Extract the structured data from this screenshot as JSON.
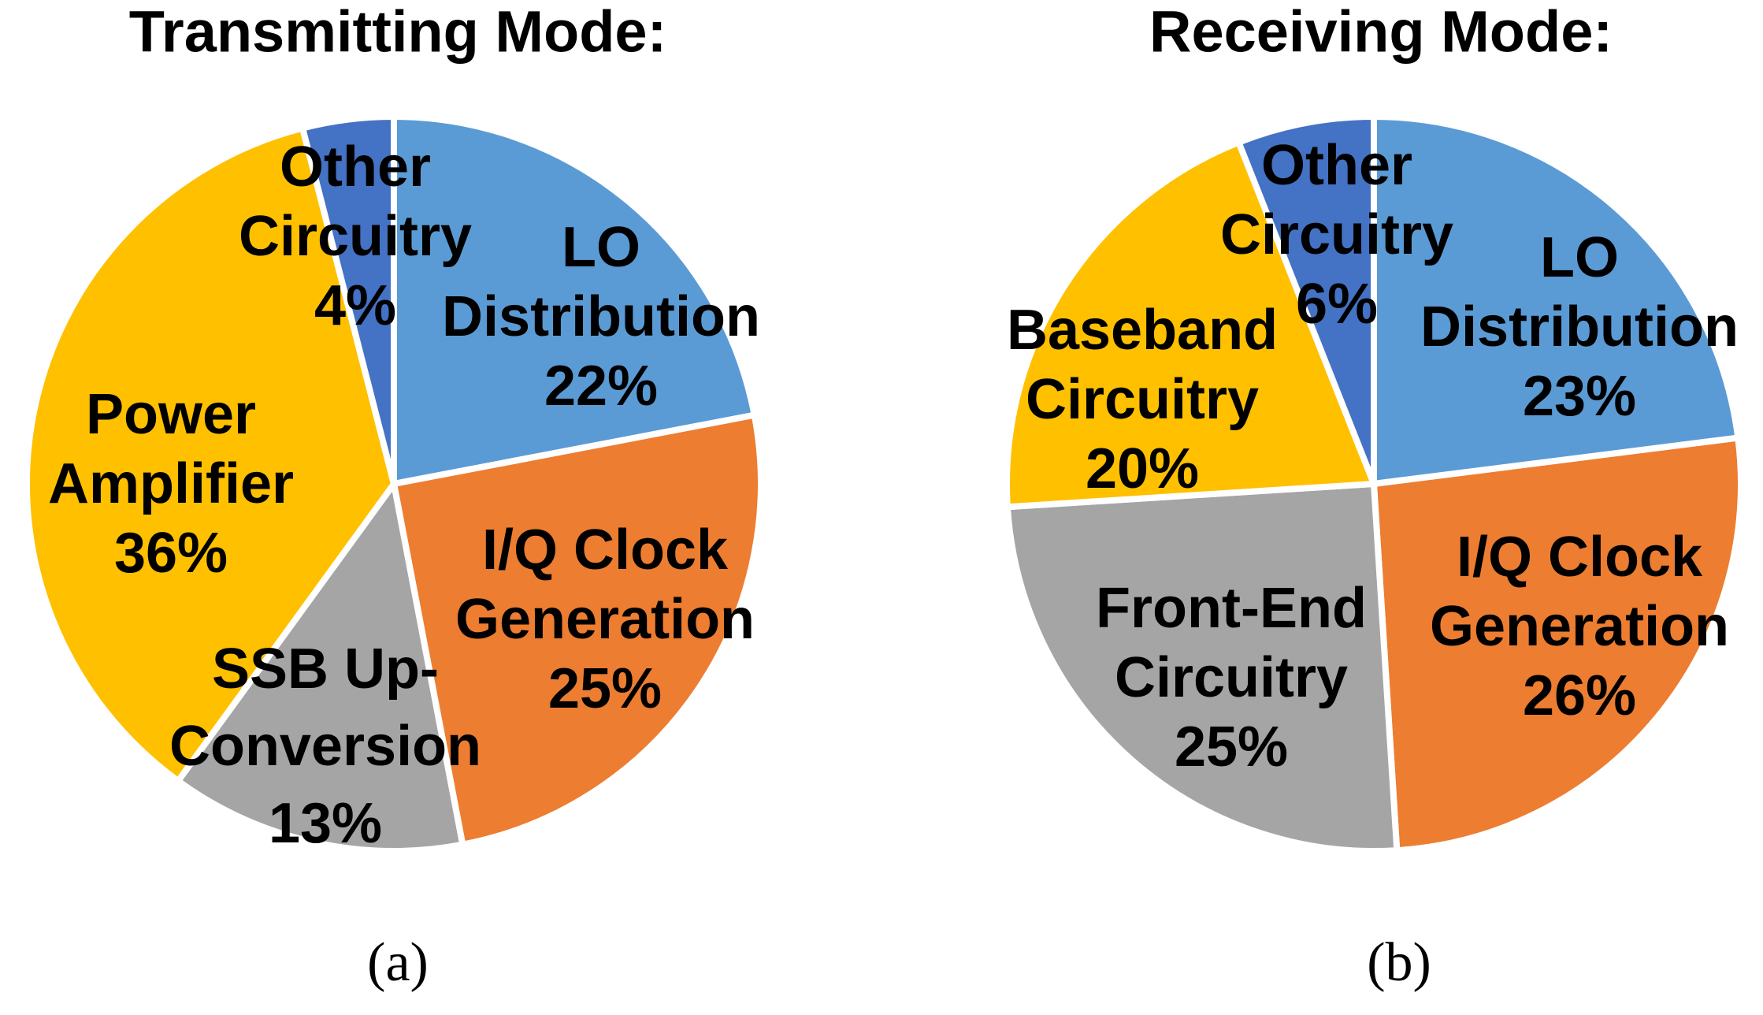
{
  "colors": {
    "background": "#FFFFFF",
    "text": "#000000",
    "separator": "#FFFFFF"
  },
  "chart_data": [
    {
      "type": "pie",
      "title": "Transmitting Mode:",
      "caption": "(a)",
      "legend_position": "none",
      "start_angle_deg": 0,
      "direction": "clockwise",
      "slices": [
        {
          "label": "LO Distribution",
          "pct": 22,
          "color": "#5B9BD5",
          "lines": [
            "LO",
            "Distribution",
            "22%"
          ]
        },
        {
          "label": "I/Q Clock Generation",
          "pct": 25,
          "color": "#ED7D31",
          "lines": [
            "I/Q Clock",
            "Generation",
            "25%"
          ]
        },
        {
          "label": "SSB Up-Conversion",
          "pct": 13,
          "color": "#A5A5A5",
          "lines": [
            "SSB Up-",
            "Conversion",
            "13%"
          ]
        },
        {
          "label": "Power Amplifier",
          "pct": 36,
          "color": "#FFC000",
          "lines": [
            "Power",
            "Amplifier",
            "36%"
          ]
        },
        {
          "label": "Other Circuitry",
          "pct": 4,
          "color": "#4472C4",
          "lines": [
            "Other",
            "Circuitry",
            "4%"
          ]
        }
      ]
    },
    {
      "type": "pie",
      "title": "Receiving Mode:",
      "caption": "(b)",
      "legend_position": "none",
      "start_angle_deg": 0,
      "direction": "clockwise",
      "slices": [
        {
          "label": "LO Distribution",
          "pct": 23,
          "color": "#5B9BD5",
          "lines": [
            "LO",
            "Distribution",
            "23%"
          ]
        },
        {
          "label": "I/Q Clock Generation",
          "pct": 26,
          "color": "#ED7D31",
          "lines": [
            "I/Q Clock",
            "Generation",
            "26%"
          ]
        },
        {
          "label": "Front-End Circuitry",
          "pct": 25,
          "color": "#A5A5A5",
          "lines": [
            "Front-End",
            "Circuitry",
            "25%"
          ]
        },
        {
          "label": "Baseband Circuitry",
          "pct": 20,
          "color": "#FFC000",
          "lines": [
            "Baseband",
            "Circuitry",
            "20%"
          ]
        },
        {
          "label": "Other Circuitry",
          "pct": 6,
          "color": "#4472C4",
          "lines": [
            "Other",
            "Circuitry",
            "6%"
          ]
        }
      ]
    }
  ]
}
